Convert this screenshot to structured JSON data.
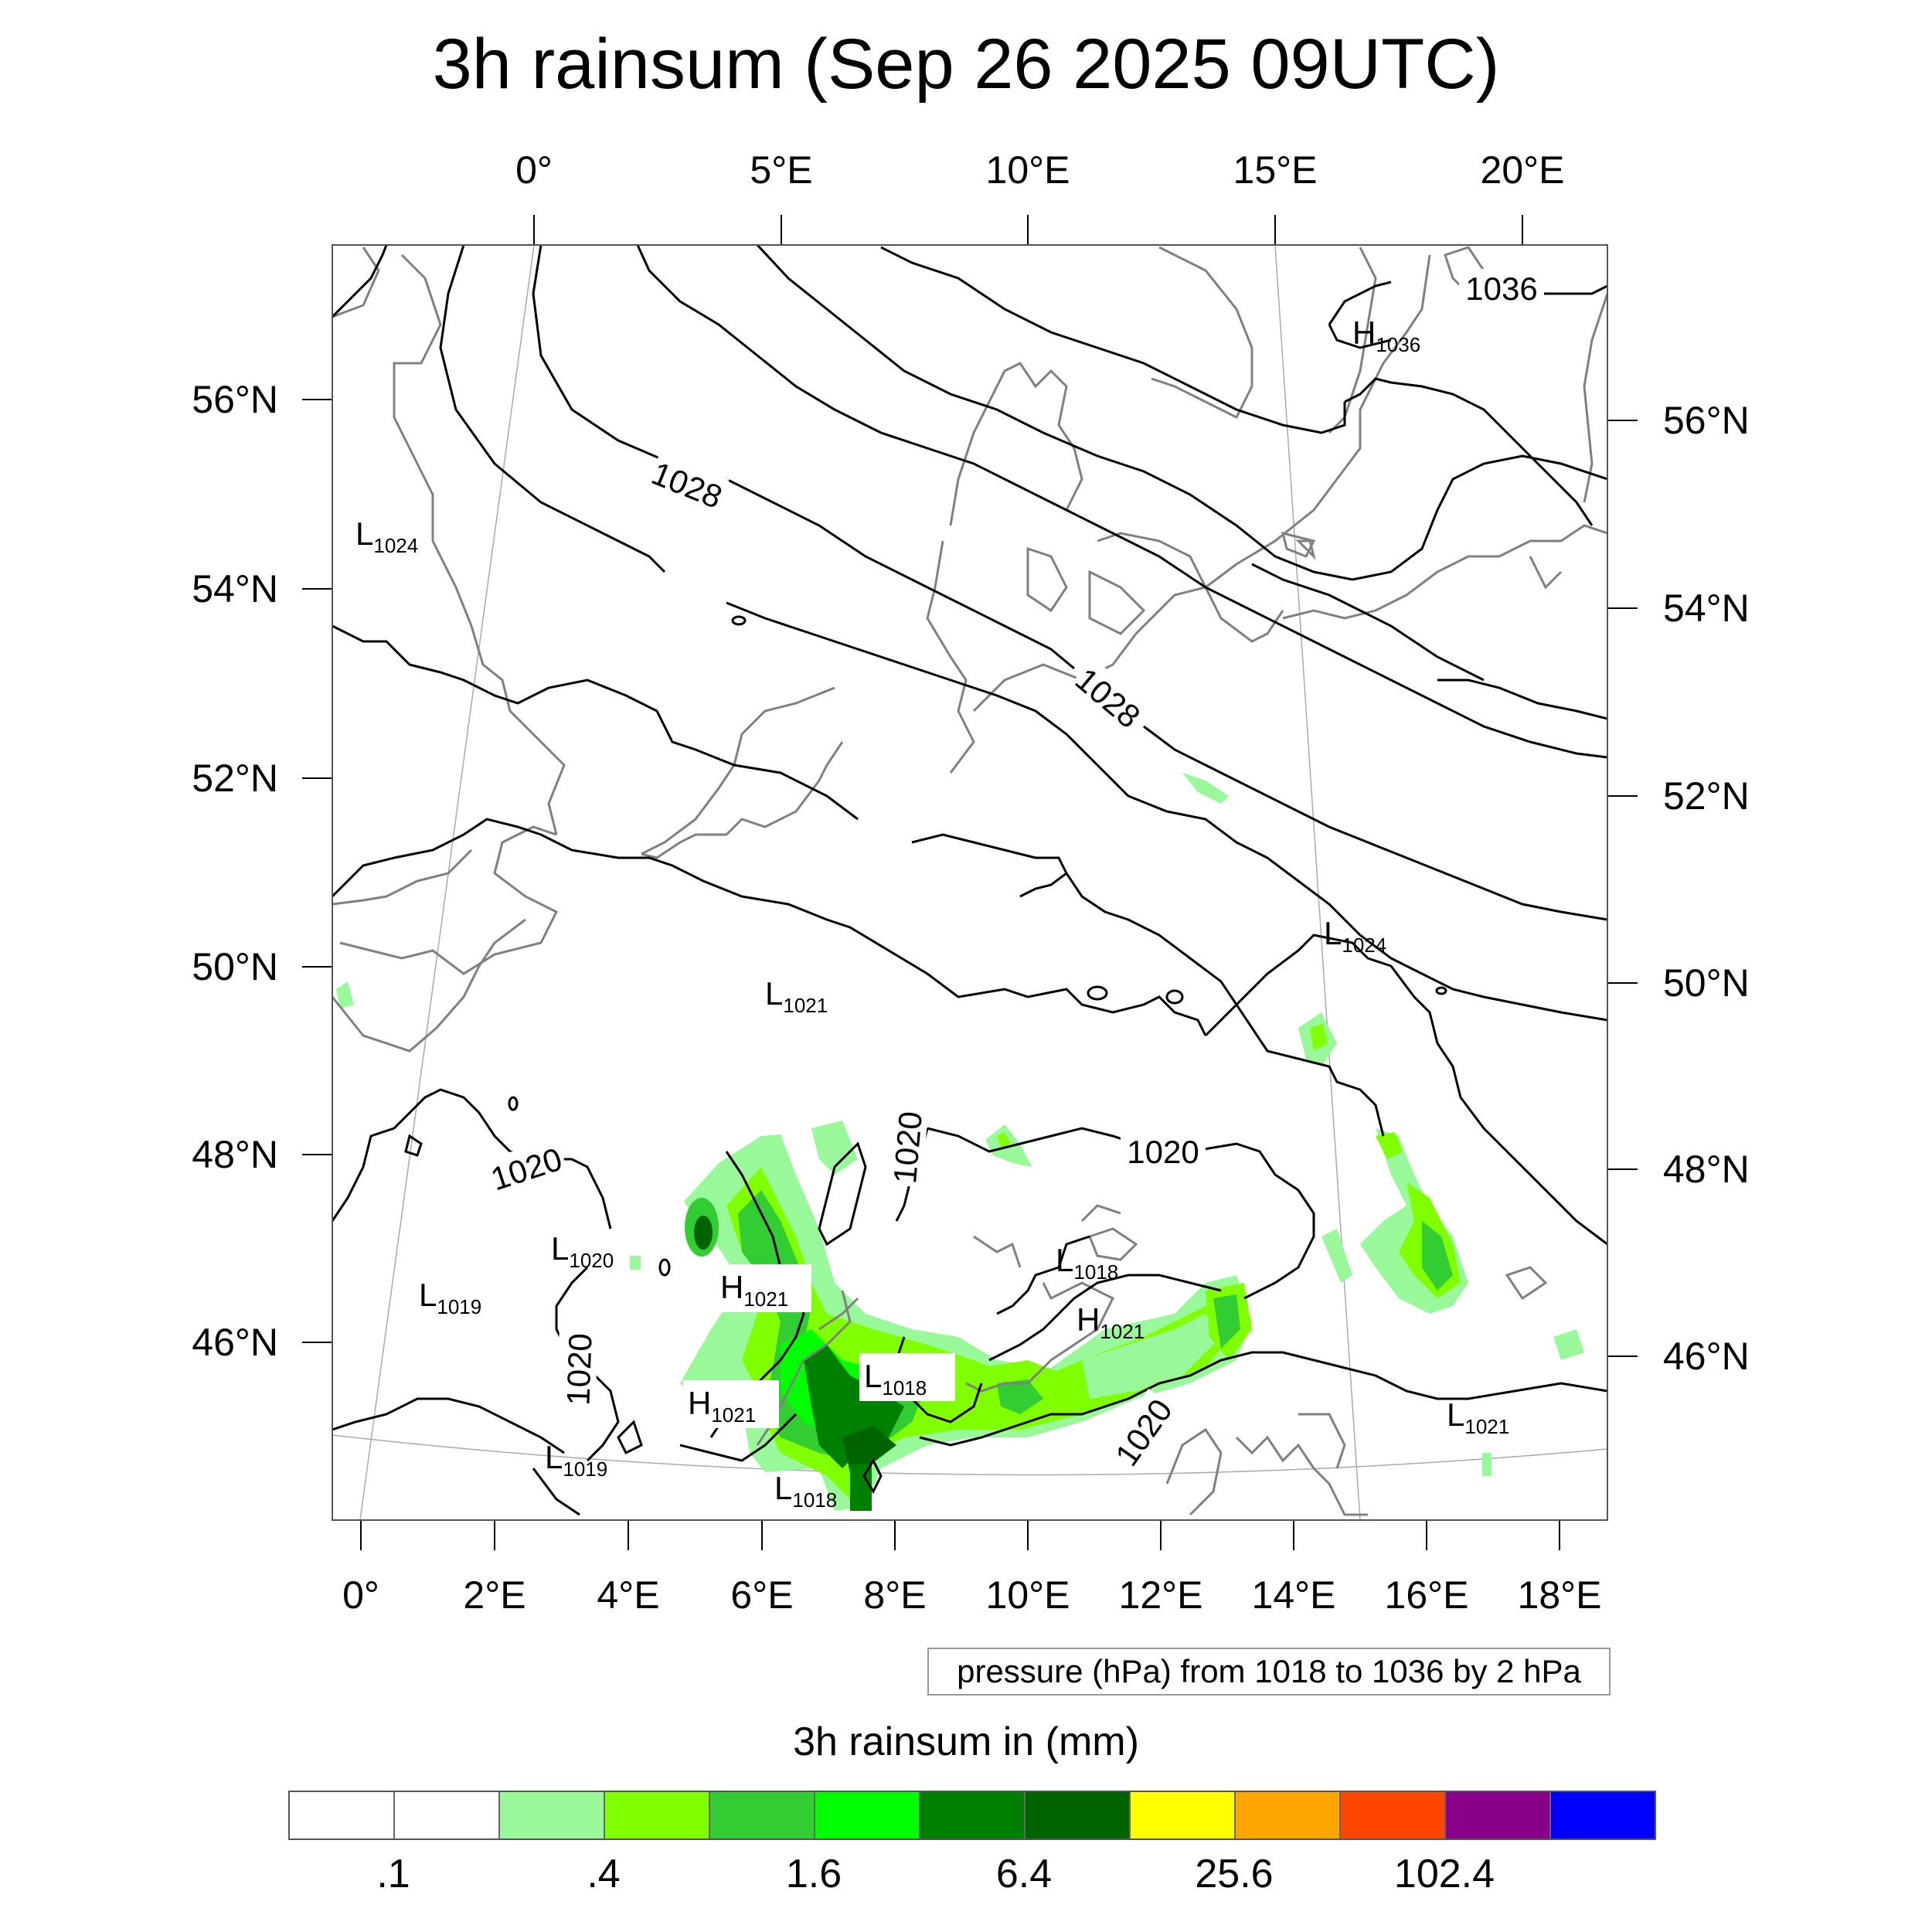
{
  "title": "3h rainsum (Sep 26 2025 09UTC)",
  "axes": {
    "top_lon": [
      "0°",
      "5°E",
      "10°E",
      "15°E",
      "20°E"
    ],
    "bottom_lon": [
      "0°",
      "2°E",
      "4°E",
      "6°E",
      "8°E",
      "10°E",
      "12°E",
      "14°E",
      "16°E",
      "18°E"
    ],
    "left_lat": [
      "56°N",
      "54°N",
      "52°N",
      "50°N",
      "48°N",
      "46°N"
    ],
    "right_lat": [
      "56°N",
      "54°N",
      "52°N",
      "50°N",
      "48°N",
      "46°N"
    ]
  },
  "contour_labels": [
    "1028",
    "1028",
    "1036",
    "1020",
    "1020",
    "1020",
    "1020",
    "1020"
  ],
  "pressure_systems": [
    {
      "type": "L",
      "value": "1024"
    },
    {
      "type": "H",
      "value": "1036"
    },
    {
      "type": "L",
      "value": "1021"
    },
    {
      "type": "L",
      "value": "1024"
    },
    {
      "type": "L",
      "value": "1020"
    },
    {
      "type": "L",
      "value": "1019"
    },
    {
      "type": "H",
      "value": "1021"
    },
    {
      "type": "H",
      "value": "1021"
    },
    {
      "type": "L",
      "value": "1018"
    },
    {
      "type": "L",
      "value": "1018"
    },
    {
      "type": "H",
      "value": "1021"
    },
    {
      "type": "L",
      "value": "1019"
    },
    {
      "type": "L",
      "value": "1018"
    },
    {
      "type": "L",
      "value": "1021"
    }
  ],
  "info_box": "pressure (hPa) from 1018 to 1036 by 2 hPa",
  "colorbar": {
    "title": "3h rainsum in (mm)",
    "colors": [
      "#ffffff",
      "#ffffff",
      "#99f899",
      "#80ff00",
      "#32cd32",
      "#00ff00",
      "#008000",
      "#006400",
      "#ffff00",
      "#ffa500",
      "#ff4500",
      "#8b008b",
      "#0000ff"
    ],
    "labels": [
      ".1",
      ".4",
      "1.6",
      "6.4",
      "25.6",
      "102.4"
    ]
  },
  "colors": {
    "rain_light": "#99f899",
    "rain_mid": "#80ff00",
    "rain_green": "#32cd32",
    "rain_bright": "#00ff00",
    "rain_dark": "#008000",
    "rain_darkest": "#006400"
  }
}
